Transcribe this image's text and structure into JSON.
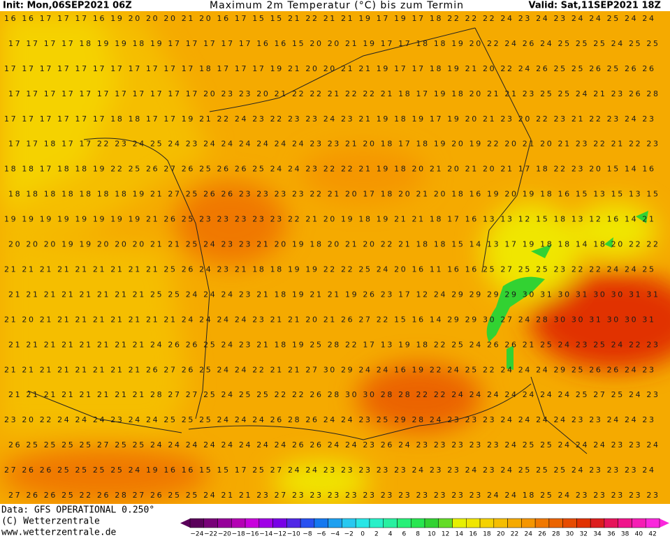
{
  "header": {
    "init": "Init: Mon,06SEP2021 06Z",
    "title": "Maximum 2m Temperatur (°C) bis zum Termin",
    "valid": "Valid: Sat,11SEP2021 18Z"
  },
  "footer": {
    "data": "Data: GFS OPERATIONAL 0.250°",
    "copyright": "(C) Wetterzentrale",
    "url": "www.wetterzentrale.de"
  },
  "grid_rows": [
    "16 16 17 17 17 16 19 20 20 20 21 20 16 17 15 15 21 22 21 21 19 17 19 17 18 22 22 22 24 23 24 23 24 24 25 24 24",
    "17 17 17 17 18 19 19 18 19 17 17 17 17 17 16 16 15 20 20 21 19 17 17 18 18 19 20 22 24 26 24 25 25 25 24 25 25",
    "17 17 17 17 17 17 17 17 17 17 17 18 17 17 17 19 21 20 20 21 21 19 17 17 18 19 21 20 22 24 26 25 25 26 25 26 26",
    "17 17 17 17 17 17 17 17 17 17 17 20 23 23 20 21 22 22 21 22 22 21 18 17 19 18 20 21 21 23 25 25 24 21 23 26 28",
    "17 17 17 17 17 17 18 18 17 17 19 21 22 24 23 22 23 23 24 23 21 19 18 19 17 19 20 21 23 20 22 23 21 22 23 24 23",
    "17 17 18 17 17 22 23 24 25 24 23 24 24 24 24 24 24 23 23 21 20 18 17 18 19 20 19 22 20 21 20 21 23 22 21 22 23",
    "18 18 17 18 18 19 22 25 26 27 26 25 26 26 25 24 24 23 22 22 21 19 18 20 21 20 21 20 21 17 18 22 23 20 15 14 16",
    "18 18 18 18 18 18 18 19 21 27 25 26 26 23 23 23 23 22 21 20 17 18 20 21 20 18 16 19 20 19 18 16 15 13 15 13 15",
    "19 19 19 19 19 19 19 19 21 26 25 23 23 23 23 23 22 21 20 19 18 19 21 21 18 17 16 13 13 12 15 18 13 12 16 14 21",
    "20 20 20 19 19 20 20 20 21 21 25 24 23 23 21 20 19 18 20 21 20 22 21 18 18 15 14 13 17 19 18 18 14 18 20 22 22",
    "21 21 21 21 21 21 21 21 21 25 26 24 23 21 18 18 19 19 22 22 25 24 20 16 11 16 16 25 27 25 25 23 22 22 24 24 25",
    "21 21 21 21 21 21 21 21 25 25 24 24 24 23 21 18 19 21 21 19 26 23 17 12 24 29 29 29 29 30 31 30 31 30 30 31 31",
    "21 20 21 21 21 21 21 21 21 21 24 24 24 24 23 21 21 20 21 26 27 22 15 16 14 29 29 30 27 24 28 30 30 31 30 30 31",
    "21 21 21 21 21 21 21 21 24 26 26 25 24 23 21 18 19 25 28 22 17 13 19 18 22 25 24 26 26 21 25 24 23 25 24 22 23",
    "21 21 21 21 21 21 21 21 26 27 26 25 24 24 22 21 21 27 30 29 24 24 16 19 22 24 25 22 24 24 24 29 25 26 26 24 23",
    "21 21 21 21 21 21 21 21 28 27 27 25 24 25 25 22 22 26 28 30 30 28 28 22 22 24 24 24 24 24 24 24 25 27 25 24 23",
    "23 20 22 24 24 24 23 24 24 25 25 25 24 24 24 26 28 26 24 24 23 25 29 28 24 23 23 23 24 24 24 24 23 23 24 24 23",
    "26 25 25 25 25 27 25 25 24 24 24 24 24 24 24 24 26 26 24 24 23 26 24 23 23 23 23 23 24 25 25 24 24 24 23 23 24",
    "27 26 26 25 25 25 25 24 19 16 16 15 15 17 25 27 24 24 23 23 23 23 23 24 23 23 24 23 24 25 25 25 24 23 23 23 24",
    "27 26 26 25 22 26 28 27 26 25 25 24 21 21 23 27 23 23 23 23 23 23 23 23 23 23 23 24 24 18 25 24 23 23 23 23 23"
  ],
  "colorbar": {
    "colors": [
      "#5a005a",
      "#780078",
      "#96009a",
      "#b400b4",
      "#c800dc",
      "#a000e6",
      "#7800e6",
      "#5028e6",
      "#2850f0",
      "#1478f0",
      "#1ea0f0",
      "#28c8f0",
      "#28e6e6",
      "#28f0c8",
      "#28f0a0",
      "#28f078",
      "#28e650",
      "#32d232",
      "#64dc28",
      "#e6f000",
      "#f0e600",
      "#f5d200",
      "#f5be00",
      "#f5aa00",
      "#f59600",
      "#f07800",
      "#eb6400",
      "#e64b00",
      "#e13200",
      "#dc1e1e",
      "#e6145a",
      "#f0148c",
      "#f51eb4",
      "#fa28dc"
    ],
    "labels": [
      "−24",
      "−22",
      "−20",
      "−18",
      "−16",
      "−14",
      "−12",
      "−10",
      "−8",
      "−6",
      "−4",
      "−2",
      "0",
      "2",
      "4",
      "6",
      "8",
      "10",
      "12",
      "14",
      "16",
      "18",
      "20",
      "22",
      "24",
      "26",
      "28",
      "30",
      "32",
      "34",
      "36",
      "38",
      "40",
      "42"
    ]
  }
}
